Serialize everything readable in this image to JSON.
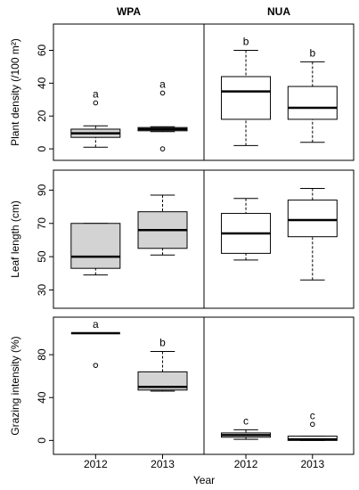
{
  "chart_data": [
    {
      "type": "box",
      "title": "WPA",
      "ylabel": "Plant density (/100 m²)",
      "color": "#d3d3d3",
      "ylim": [
        -7,
        76
      ],
      "yticks": [
        0,
        20,
        40,
        60
      ],
      "boxes": [
        {
          "min": 1,
          "q1": 7,
          "median": 9.5,
          "q3": 12,
          "max": 14,
          "outliers": [
            28
          ],
          "label": "a"
        },
        {
          "min": 10.5,
          "q1": 11,
          "median": 12,
          "q3": 13,
          "max": 13.5,
          "outliers": [
            34,
            0
          ],
          "label": "a"
        }
      ]
    },
    {
      "type": "box",
      "title": "NUA",
      "color": "#ffffff",
      "ylim": [
        -7,
        76
      ],
      "boxes": [
        {
          "min": 2,
          "q1": 18,
          "median": 35,
          "q3": 44,
          "max": 60,
          "outliers": [],
          "label": "b"
        },
        {
          "min": 4,
          "q1": 18,
          "median": 25,
          "q3": 38,
          "max": 53,
          "outliers": [],
          "label": "b"
        }
      ]
    },
    {
      "type": "box",
      "ylabel": "Leaf length (cm)",
      "color": "#d3d3d3",
      "ylim": [
        19,
        102
      ],
      "yticks": [
        30,
        50,
        70,
        90
      ],
      "boxes": [
        {
          "min": 39,
          "q1": 43,
          "median": 50,
          "q3": 70,
          "max": 70,
          "outliers": []
        },
        {
          "min": 51,
          "q1": 55,
          "median": 66,
          "q3": 77,
          "max": 87,
          "outliers": []
        }
      ]
    },
    {
      "type": "box",
      "color": "#ffffff",
      "ylim": [
        19,
        102
      ],
      "boxes": [
        {
          "min": 48,
          "q1": 52,
          "median": 64,
          "q3": 76,
          "max": 85,
          "outliers": []
        },
        {
          "min": 36,
          "q1": 62,
          "median": 72,
          "q3": 84,
          "max": 91,
          "outliers": []
        }
      ]
    },
    {
      "type": "box",
      "ylabel": "Grazing intensity (%)",
      "xlabel": "Year",
      "color": "#d3d3d3",
      "ylim": [
        -13,
        115
      ],
      "yticks": [
        0,
        40,
        80
      ],
      "categories": [
        "2012",
        "2013"
      ],
      "boxes": [
        {
          "min": 100,
          "q1": 100,
          "median": 100,
          "q3": 100,
          "max": 100,
          "outliers": [
            70
          ],
          "label": "a"
        },
        {
          "min": 46,
          "q1": 47,
          "median": 50,
          "q3": 64,
          "max": 83,
          "outliers": [],
          "label": "b"
        }
      ]
    },
    {
      "type": "box",
      "color": "#ffffff",
      "ylim": [
        -13,
        115
      ],
      "categories": [
        "2012",
        "2013"
      ],
      "boxes": [
        {
          "min": 1,
          "q1": 3,
          "median": 5,
          "q3": 7,
          "max": 10,
          "outliers": [],
          "label": "c"
        },
        {
          "min": 0,
          "q1": 0,
          "median": 1,
          "q3": 4,
          "max": 4,
          "outliers": [
            15
          ],
          "label": "c"
        }
      ]
    }
  ]
}
